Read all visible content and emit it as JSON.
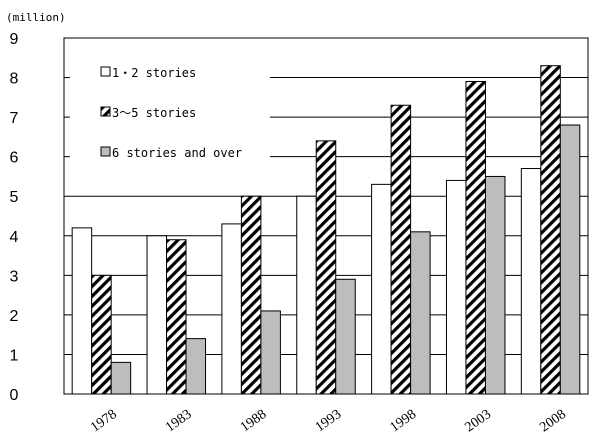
{
  "chart_data": {
    "type": "bar",
    "unit_label": "(million)",
    "categories": [
      "1978",
      "1983",
      "1988",
      "1993",
      "1998",
      "2003",
      "2008"
    ],
    "series": [
      {
        "name": "1・2 stories",
        "pattern": "white",
        "values": [
          4.2,
          4.0,
          4.3,
          5.0,
          5.3,
          5.4,
          5.7
        ]
      },
      {
        "name": "3〜5 stories",
        "pattern": "hatch",
        "values": [
          3.0,
          3.9,
          5.0,
          6.4,
          7.3,
          7.9,
          8.3
        ]
      },
      {
        "name": "6 stories and over",
        "pattern": "gray",
        "values": [
          0.8,
          1.4,
          2.1,
          2.9,
          4.1,
          5.5,
          6.8
        ]
      }
    ],
    "ylim": [
      0,
      9
    ],
    "yticks": [
      "0",
      "1",
      "2",
      "3",
      "4",
      "5",
      "6",
      "7",
      "8",
      "9"
    ],
    "grid": true,
    "legend_position": "top-left",
    "colors": {
      "white": "#ffffff",
      "gray": "#bdbdbd",
      "stroke": "#000000",
      "grid": "#000000"
    }
  }
}
